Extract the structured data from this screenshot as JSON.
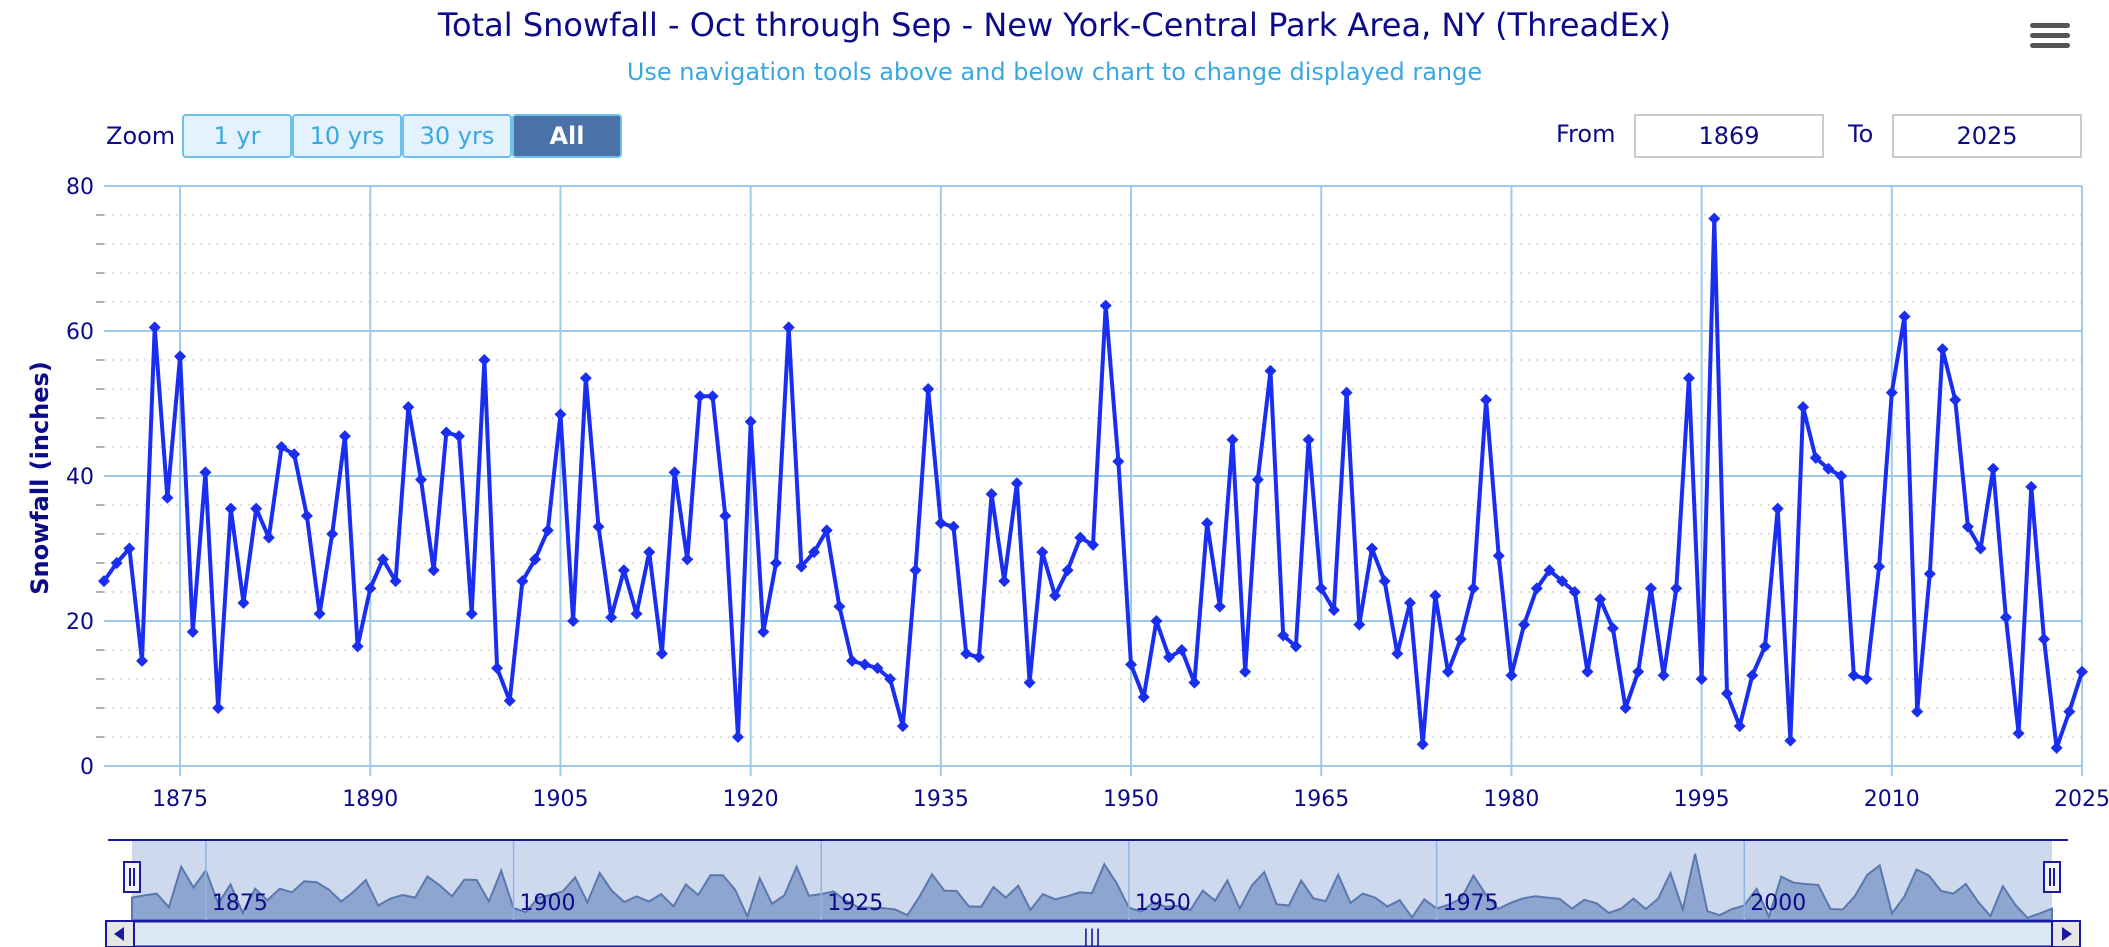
{
  "header": {
    "title": "Total Snowfall - Oct through Sep - New York-Central Park Area, NY (ThreadEx)",
    "subtitle": "Use navigation tools above and below chart to change displayed range"
  },
  "toolbar": {
    "zoom_label": "Zoom",
    "zoom_buttons": [
      "1 yr",
      "10 yrs",
      "30 yrs",
      "All"
    ],
    "active_zoom": "All",
    "from_label": "From",
    "from_value": "1869",
    "to_label": "To",
    "to_value": "2025",
    "menu_icon": "hamburger-menu-icon"
  },
  "chart_data": {
    "type": "line",
    "title": "Total Snowfall - Oct through Sep - New York-Central Park Area, NY (ThreadEx)",
    "subtitle": "Use navigation tools above and below chart to change displayed range",
    "xlabel": "",
    "ylabel": "Snowfall (inches)",
    "xlim": [
      1869,
      2025
    ],
    "ylim": [
      0,
      80
    ],
    "x_ticks": [
      "1875",
      "1890",
      "1905",
      "1920",
      "1935",
      "1950",
      "1965",
      "1980",
      "1995",
      "2010",
      "2025"
    ],
    "y_ticks": [
      "0",
      "20",
      "40",
      "60",
      "80"
    ],
    "grid": true,
    "legend": false,
    "line_color": "#1a2ef0",
    "x_start": 1869,
    "values": [
      25.5,
      28.0,
      30.0,
      14.5,
      60.5,
      37.0,
      56.5,
      18.5,
      40.5,
      8.0,
      35.5,
      22.5,
      35.5,
      31.5,
      44.0,
      43.0,
      34.5,
      21.0,
      32.0,
      45.5,
      16.5,
      24.5,
      28.5,
      25.5,
      49.5,
      39.5,
      27.0,
      46.0,
      45.5,
      21.0,
      56.0,
      13.5,
      9.0,
      25.5,
      28.5,
      32.5,
      48.5,
      20.0,
      53.5,
      33.0,
      20.5,
      27.0,
      21.0,
      29.5,
      15.5,
      40.5,
      28.5,
      51.0,
      51.0,
      34.5,
      4.0,
      47.5,
      18.5,
      28.0,
      60.5,
      27.5,
      29.5,
      32.5,
      22.0,
      14.5,
      14.0,
      13.5,
      12.0,
      5.5,
      27.0,
      52.0,
      33.5,
      33.0,
      15.5,
      15.0,
      37.5,
      25.5,
      39.0,
      11.5,
      29.5,
      23.5,
      27.0,
      31.5,
      30.5,
      63.5,
      42.0,
      14.0,
      9.5,
      20.0,
      15.0,
      16.0,
      11.5,
      33.5,
      22.0,
      45.0,
      13.0,
      39.5,
      54.5,
      18.0,
      16.5,
      45.0,
      24.5,
      21.5,
      51.5,
      19.5,
      30.0,
      25.5,
      15.5,
      22.5,
      3.0,
      23.5,
      13.0,
      17.5,
      24.5,
      50.5,
      29.0,
      12.5,
      19.5,
      24.5,
      27.0,
      25.5,
      24.0,
      13.0,
      23.0,
      19.0,
      8.0,
      13.0,
      24.5,
      12.5,
      24.5,
      53.5,
      12.0,
      75.5,
      10.0,
      5.5,
      12.5,
      16.5,
      35.5,
      3.5,
      49.5,
      42.5,
      41.0,
      40.0,
      12.5,
      12.0,
      27.5,
      51.5,
      62.0,
      7.5,
      26.5,
      57.5,
      50.5,
      33.0,
      30.0,
      41.0,
      20.5,
      4.5,
      38.5,
      17.5,
      2.5,
      7.5,
      13.0
    ]
  },
  "navigator": {
    "x_ticks": [
      "1875",
      "1900",
      "1925",
      "1950",
      "1975",
      "2000"
    ],
    "scrollbar_grip": "|||"
  }
}
